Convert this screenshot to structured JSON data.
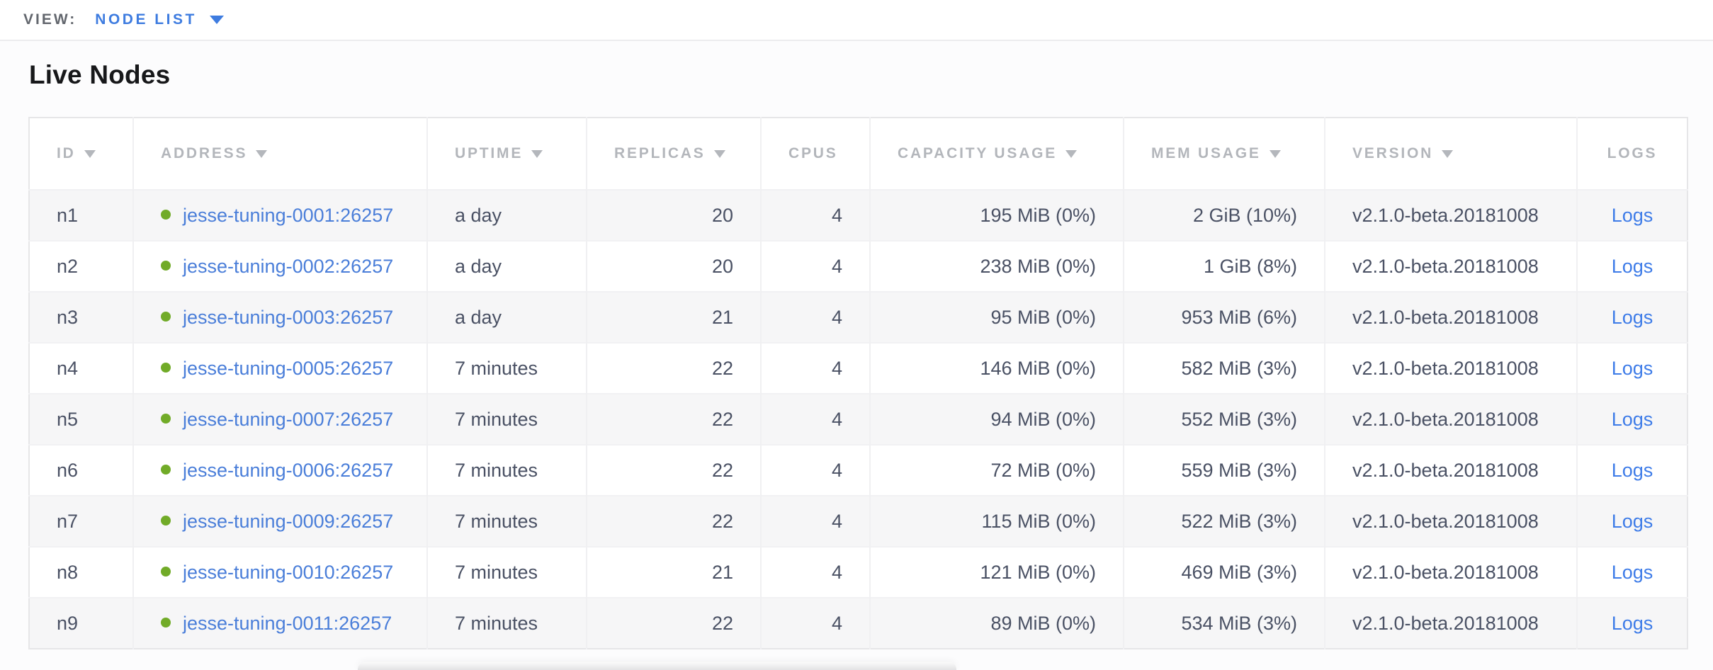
{
  "view_bar": {
    "label": "VIEW:",
    "selected": "NODE LIST"
  },
  "page": {
    "title": "Live Nodes"
  },
  "table": {
    "columns": [
      {
        "key": "id",
        "label": "ID",
        "sortable": true,
        "align": "left"
      },
      {
        "key": "address",
        "label": "ADDRESS",
        "sortable": true,
        "align": "left"
      },
      {
        "key": "uptime",
        "label": "UPTIME",
        "sortable": true,
        "align": "left"
      },
      {
        "key": "replicas",
        "label": "REPLICAS",
        "sortable": true,
        "align": "right"
      },
      {
        "key": "cpus",
        "label": "CPUS",
        "sortable": false,
        "align": "right"
      },
      {
        "key": "capacity",
        "label": "CAPACITY USAGE",
        "sortable": true,
        "align": "right"
      },
      {
        "key": "mem",
        "label": "MEM USAGE",
        "sortable": true,
        "align": "right"
      },
      {
        "key": "version",
        "label": "VERSION",
        "sortable": true,
        "align": "left"
      },
      {
        "key": "logs",
        "label": "LOGS",
        "sortable": false,
        "align": "center"
      }
    ],
    "rows": [
      {
        "id": "n1",
        "address": "jesse-tuning-0001:26257",
        "status": "live",
        "uptime": "a day",
        "replicas": "20",
        "cpus": "4",
        "capacity": "195 MiB (0%)",
        "mem": "2 GiB (10%)",
        "version": "v2.1.0-beta.20181008",
        "logs": "Logs"
      },
      {
        "id": "n2",
        "address": "jesse-tuning-0002:26257",
        "status": "live",
        "uptime": "a day",
        "replicas": "20",
        "cpus": "4",
        "capacity": "238 MiB (0%)",
        "mem": "1 GiB (8%)",
        "version": "v2.1.0-beta.20181008",
        "logs": "Logs"
      },
      {
        "id": "n3",
        "address": "jesse-tuning-0003:26257",
        "status": "live",
        "uptime": "a day",
        "replicas": "21",
        "cpus": "4",
        "capacity": "95 MiB (0%)",
        "mem": "953 MiB (6%)",
        "version": "v2.1.0-beta.20181008",
        "logs": "Logs"
      },
      {
        "id": "n4",
        "address": "jesse-tuning-0005:26257",
        "status": "live",
        "uptime": "7 minutes",
        "replicas": "22",
        "cpus": "4",
        "capacity": "146 MiB (0%)",
        "mem": "582 MiB (3%)",
        "version": "v2.1.0-beta.20181008",
        "logs": "Logs"
      },
      {
        "id": "n5",
        "address": "jesse-tuning-0007:26257",
        "status": "live",
        "uptime": "7 minutes",
        "replicas": "22",
        "cpus": "4",
        "capacity": "94 MiB (0%)",
        "mem": "552 MiB (3%)",
        "version": "v2.1.0-beta.20181008",
        "logs": "Logs"
      },
      {
        "id": "n6",
        "address": "jesse-tuning-0006:26257",
        "status": "live",
        "uptime": "7 minutes",
        "replicas": "22",
        "cpus": "4",
        "capacity": "72 MiB (0%)",
        "mem": "559 MiB (3%)",
        "version": "v2.1.0-beta.20181008",
        "logs": "Logs"
      },
      {
        "id": "n7",
        "address": "jesse-tuning-0009:26257",
        "status": "live",
        "uptime": "7 minutes",
        "replicas": "22",
        "cpus": "4",
        "capacity": "115 MiB (0%)",
        "mem": "522 MiB (3%)",
        "version": "v2.1.0-beta.20181008",
        "logs": "Logs"
      },
      {
        "id": "n8",
        "address": "jesse-tuning-0010:26257",
        "status": "live",
        "uptime": "7 minutes",
        "replicas": "21",
        "cpus": "4",
        "capacity": "121 MiB (0%)",
        "mem": "469 MiB (3%)",
        "version": "v2.1.0-beta.20181008",
        "logs": "Logs"
      },
      {
        "id": "n9",
        "address": "jesse-tuning-0011:26257",
        "status": "live",
        "uptime": "7 minutes",
        "replicas": "22",
        "cpus": "4",
        "capacity": "89 MiB (0%)",
        "mem": "534 MiB (3%)",
        "version": "v2.1.0-beta.20181008",
        "logs": "Logs"
      }
    ]
  },
  "icons": {
    "view_dropdown": "chevron-down-icon",
    "sort": "sort-desc-icon",
    "node_status": "live-status-dot"
  },
  "colors": {
    "accent_blue": "#3e7ce0",
    "link_blue": "#4a7ed9",
    "live_green": "#71ab28",
    "header_gray": "#b3b6bb",
    "cell_text": "#4a5164",
    "row_alt_bg": "#f6f6f7"
  }
}
